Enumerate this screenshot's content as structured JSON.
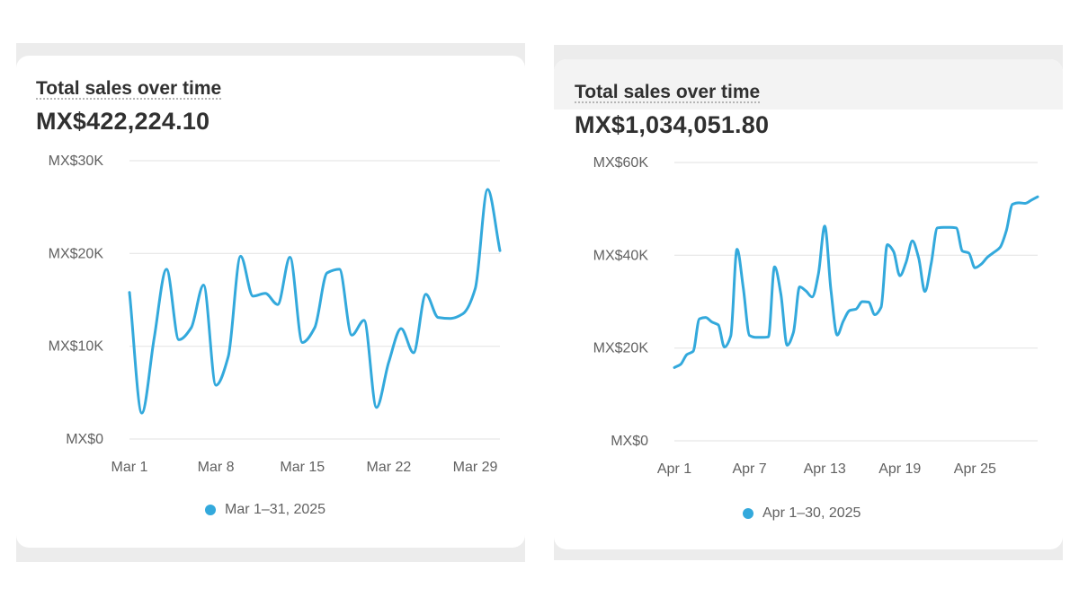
{
  "colors": {
    "line": "#33a9dc",
    "grid": "#e6e6e6",
    "axis_text": "#616161",
    "frame": "#ececec"
  },
  "left_card": {
    "title": "Total sales over time",
    "total": "MX$422,224.10",
    "legend": "Mar 1–31, 2025"
  },
  "right_card": {
    "title": "Total sales over time",
    "total": "MX$1,034,051.80",
    "legend": "Apr 1–30, 2025"
  },
  "chart_data": [
    {
      "type": "line",
      "title": "Total sales over time",
      "y_ticks": [
        "MX$0",
        "MX$10K",
        "MX$20K",
        "MX$30K"
      ],
      "y_tick_values": [
        0,
        10000,
        20000,
        30000
      ],
      "ylim": [
        0,
        30000
      ],
      "x_ticks": [
        {
          "label": "Mar 1",
          "day": 1
        },
        {
          "label": "Mar 8",
          "day": 8
        },
        {
          "label": "Mar 15",
          "day": 15
        },
        {
          "label": "Mar 22",
          "day": 22
        },
        {
          "label": "Mar 29",
          "day": 29
        }
      ],
      "grid": true,
      "legend_position": "bottom-center",
      "series": [
        {
          "name": "Mar 1–31, 2025",
          "x": [
            1,
            2,
            3,
            4,
            5,
            6,
            7,
            8,
            9,
            10,
            11,
            12,
            13,
            14,
            15,
            16,
            17,
            18,
            19,
            20,
            21,
            22,
            23,
            24,
            25,
            26,
            27,
            28,
            29,
            30,
            31
          ],
          "values": [
            15800,
            2800,
            10900,
            18300,
            10700,
            12000,
            16600,
            5800,
            8900,
            19700,
            15400,
            15700,
            14500,
            19600,
            10400,
            12000,
            17900,
            18300,
            11200,
            12800,
            3400,
            8300,
            11900,
            9300,
            15600,
            13100,
            13000,
            13500,
            16200,
            26900,
            20300
          ]
        }
      ]
    },
    {
      "type": "line",
      "title": "Total sales over time",
      "y_ticks": [
        "MX$0",
        "MX$20K",
        "MX$40K",
        "MX$60K"
      ],
      "y_tick_values": [
        0,
        20000,
        40000,
        60000
      ],
      "ylim": [
        0,
        60000
      ],
      "x_ticks": [
        {
          "label": "Apr 1",
          "day": 1
        },
        {
          "label": "Apr 7",
          "day": 7
        },
        {
          "label": "Apr 13",
          "day": 13
        },
        {
          "label": "Apr 19",
          "day": 19
        },
        {
          "label": "Apr 25",
          "day": 25
        }
      ],
      "grid": true,
      "legend_position": "bottom-center",
      "series": [
        {
          "name": "Apr 1–30, 2025",
          "x": [
            1,
            1.5,
            2,
            2.5,
            3,
            3.5,
            4,
            4.5,
            5,
            5.5,
            6,
            6.5,
            7,
            7.5,
            8,
            8.5,
            9,
            9.5,
            10,
            10.5,
            11,
            11.5,
            12,
            12.5,
            13,
            13.5,
            14,
            14.5,
            15,
            15.5,
            16,
            16.5,
            17,
            17.5,
            18,
            18.5,
            19,
            19.5,
            20,
            20.5,
            21,
            21.5,
            22,
            22.5,
            23,
            23.5,
            24,
            24.5,
            25,
            25.5,
            26,
            26.5,
            27,
            27.5,
            28,
            28.5,
            29,
            29.5,
            30
          ],
          "values": [
            15800,
            16500,
            18600,
            19300,
            26300,
            26600,
            25600,
            25000,
            20200,
            22600,
            41300,
            33000,
            22700,
            22300,
            22300,
            22400,
            37500,
            31700,
            20600,
            23300,
            33200,
            32300,
            31000,
            36000,
            46300,
            32500,
            22800,
            25900,
            28100,
            28400,
            30000,
            29900,
            27200,
            28800,
            42300,
            40800,
            35600,
            38500,
            43100,
            39400,
            32200,
            38200,
            45900,
            46000,
            46000,
            45900,
            40900,
            40500,
            37300,
            38100,
            39600,
            40600,
            41700,
            45300,
            51000,
            51300,
            51200,
            51900,
            52600
          ]
        }
      ]
    }
  ]
}
